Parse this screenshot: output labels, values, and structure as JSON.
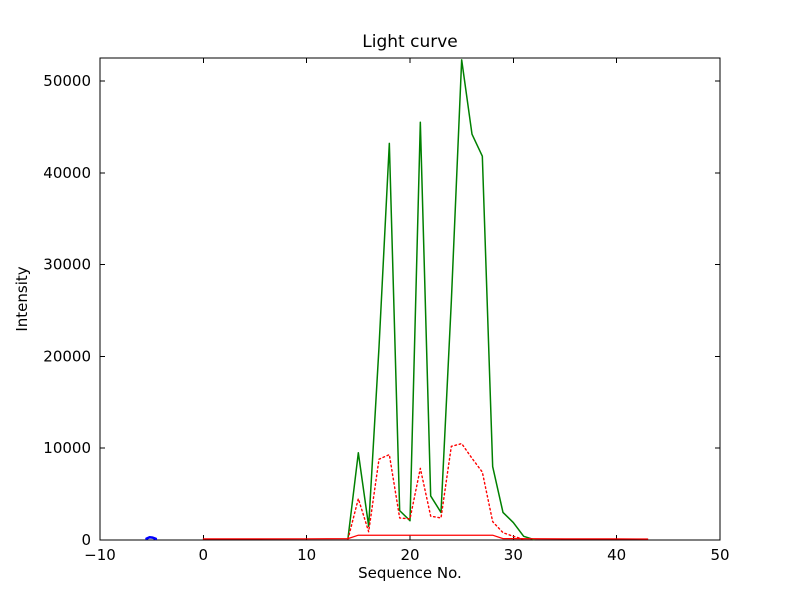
{
  "chart_data": {
    "type": "line",
    "title": "Light curve",
    "xlabel": "Sequence No.",
    "ylabel": "Intensity",
    "xlim": [
      -10,
      50
    ],
    "ylim": [
      0,
      52500
    ],
    "grid": false,
    "legend": "none",
    "xticks": {
      "values": [
        -10,
        0,
        10,
        20,
        30,
        40,
        50
      ],
      "labels": [
        "−10",
        "0",
        "10",
        "20",
        "30",
        "40",
        "50"
      ]
    },
    "yticks": {
      "values": [
        0,
        10000,
        20000,
        30000,
        40000,
        50000
      ],
      "labels": [
        "0",
        "10000",
        "20000",
        "30000",
        "40000",
        "50000"
      ]
    },
    "series": [
      {
        "name": "green-intensity",
        "color": "#008000",
        "style": "solid",
        "width": 1.5,
        "x": [
          14,
          15,
          16,
          17,
          18,
          19,
          20,
          21,
          22,
          23,
          24,
          25,
          26,
          27,
          28,
          29,
          30,
          31,
          32
        ],
        "y": [
          200,
          9500,
          1500,
          21000,
          43200,
          3200,
          2100,
          45500,
          4800,
          3000,
          26000,
          52300,
          44200,
          41800,
          8000,
          3000,
          1900,
          400,
          50
        ]
      },
      {
        "name": "red-dotted-intensity",
        "color": "#ff0000",
        "style": "dotted",
        "width": 1.4,
        "x": [
          14,
          15,
          16,
          17,
          18,
          19,
          20,
          21,
          22,
          23,
          24,
          25,
          26,
          27,
          28,
          29,
          30,
          31
        ],
        "y": [
          100,
          4500,
          900,
          8800,
          9300,
          2400,
          2300,
          7800,
          2600,
          2400,
          10200,
          10500,
          8900,
          7400,
          2000,
          800,
          400,
          80
        ]
      },
      {
        "name": "red-solid-background",
        "color": "#ff0000",
        "style": "solid",
        "width": 1.2,
        "x": [
          0,
          5,
          10,
          14,
          15,
          20,
          25,
          28,
          29,
          35,
          40,
          43
        ],
        "y": [
          120,
          120,
          130,
          150,
          520,
          520,
          520,
          520,
          150,
          120,
          120,
          110
        ]
      },
      {
        "name": "blue-marker",
        "color": "#0000ff",
        "style": "solid",
        "width": 2.5,
        "x": [
          -5.5,
          -5.2,
          -4.9,
          -4.6
        ],
        "y": [
          150,
          300,
          260,
          130
        ]
      }
    ]
  }
}
